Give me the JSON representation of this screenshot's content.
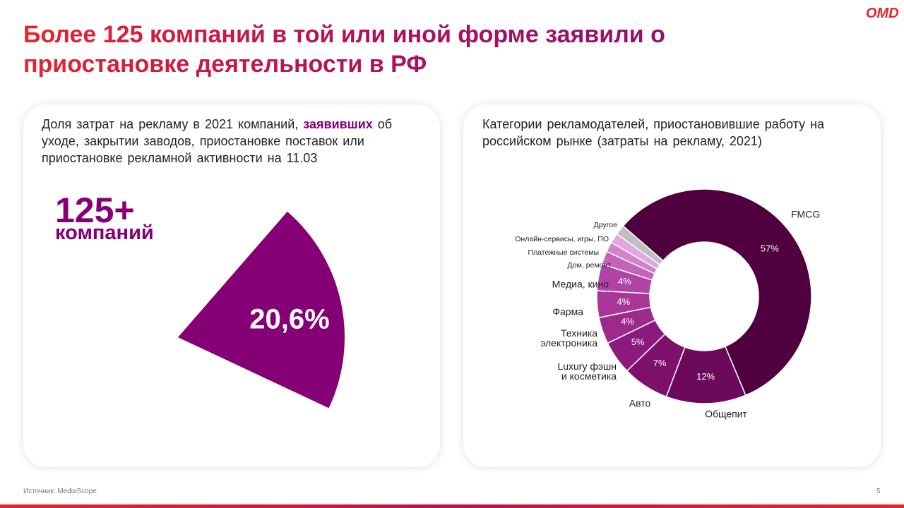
{
  "header": {
    "title": "Более 125 компаний в той или иной форме заявили о приостановке деятельности в РФ",
    "logo": "OMD"
  },
  "footer": {
    "source": "Источник: MediaScope",
    "page": "5"
  },
  "chart_data": [
    {
      "type": "sector",
      "subtitle": [
        "Доля затрат на рекламу в 2021 компаний,",
        "заявивших",
        "об уходе, закрытии заводов, приостановке поставок или приостановке рекламной активности на 11.03"
      ],
      "headline": "125+",
      "headline_sub": "компаний",
      "values": [
        20.6
      ],
      "value_labels": [
        "20,6%"
      ],
      "color": "#850075"
    },
    {
      "type": "donut",
      "subtitle": "Категории рекламодателей, приостановившие работу на российском рынке (затраты на рекламу, 2021)",
      "categories": [
        "FMCG",
        "Общепит",
        "Авто",
        "Luxury фэшн\nи косметика",
        "Техника\nэлектроника",
        "Фарма",
        "Медиа, кино",
        "Дом, ремонт",
        "Платежные системы",
        "Онлайн-сервисы, игры, ПО",
        "Другое"
      ],
      "values": [
        57,
        12,
        7,
        5,
        4,
        4,
        4,
        2,
        1.5,
        1.5,
        1.5
      ],
      "value_labels": [
        "57%",
        "12%",
        "7%",
        "5%",
        "4%",
        "4%",
        "4%",
        null,
        null,
        null,
        null
      ],
      "colors": [
        "#50003f",
        "#6b0a5b",
        "#7c106b",
        "#8c1a7c",
        "#9b2a8b",
        "#a83598",
        "#b143a7",
        "#c463ba",
        "#d282cb",
        "#e3a6de",
        "#bfbfbf"
      ]
    }
  ]
}
